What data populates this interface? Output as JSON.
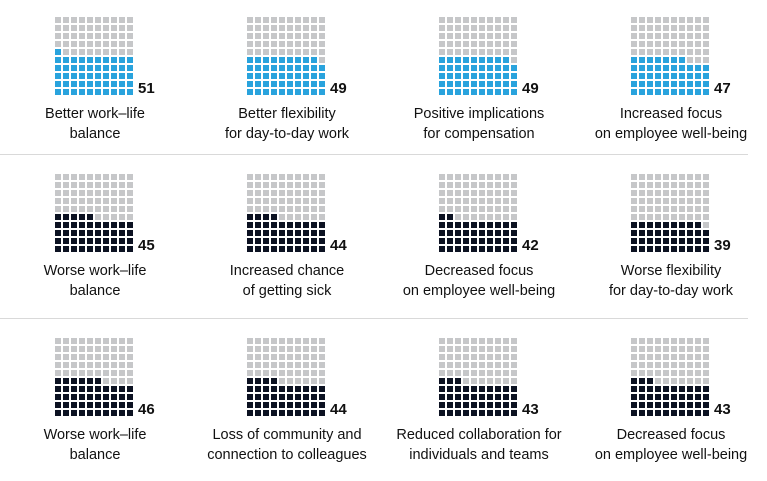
{
  "colors": {
    "empty": "#c6c7c9",
    "positive": "#29a3dd",
    "negative": "#0c1222"
  },
  "chart_data": {
    "type": "waffle",
    "total_per_grid": 100,
    "rows": [
      {
        "tone": "positive",
        "items": [
          {
            "value": 51,
            "label_lines": [
              "Better work–life",
              "balance"
            ]
          },
          {
            "value": 49,
            "label_lines": [
              "Better flexibility",
              "for day-to-day work"
            ]
          },
          {
            "value": 49,
            "label_lines": [
              "Positive implications",
              "for compensation"
            ]
          },
          {
            "value": 47,
            "label_lines": [
              "Increased focus",
              "on employee well-being"
            ]
          }
        ]
      },
      {
        "tone": "negative",
        "items": [
          {
            "value": 45,
            "label_lines": [
              "Worse work–life",
              "balance"
            ]
          },
          {
            "value": 44,
            "label_lines": [
              "Increased chance",
              "of getting sick"
            ]
          },
          {
            "value": 42,
            "label_lines": [
              "Decreased focus",
              "on employee well-being"
            ]
          },
          {
            "value": 39,
            "label_lines": [
              "Worse flexibility",
              "for day-to-day work"
            ]
          }
        ]
      },
      {
        "tone": "negative",
        "items": [
          {
            "value": 46,
            "label_lines": [
              "Worse work–life",
              "balance"
            ]
          },
          {
            "value": 44,
            "label_lines": [
              "Loss of community and",
              "connection to colleagues"
            ]
          },
          {
            "value": 43,
            "label_lines": [
              "Reduced collaboration for",
              "individuals and teams"
            ]
          },
          {
            "value": 43,
            "label_lines": [
              "Decreased focus",
              "on employee well-being"
            ]
          }
        ]
      }
    ]
  }
}
